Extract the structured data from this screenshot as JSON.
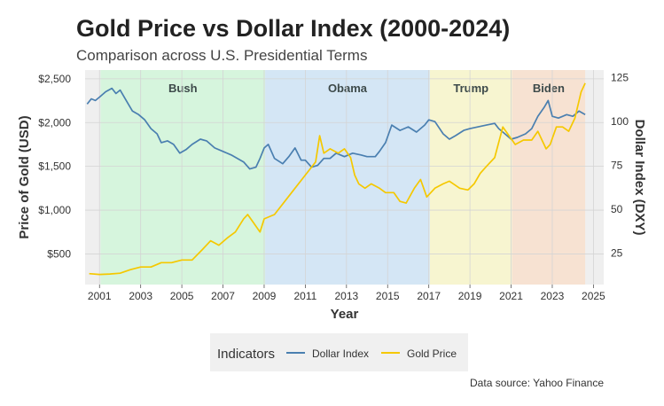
{
  "chart_data": {
    "type": "line",
    "title": "Gold Price vs Dollar Index (2000-2024)",
    "subtitle": "Comparison across U.S. Presidential Terms",
    "xlabel": "Year",
    "ylabel_left": "Price of Gold (USD)",
    "ylabel_right": "Dollar Index (DXY)",
    "caption": "Data source: Yahoo Finance",
    "xlim": [
      2000.3,
      2025.5
    ],
    "ylim_left": [
      150,
      2600
    ],
    "ylim_right": [
      7.1,
      129.4
    ],
    "x_ticks": [
      2001,
      2003,
      2005,
      2007,
      2009,
      2011,
      2013,
      2015,
      2017,
      2019,
      2021,
      2023,
      2025
    ],
    "x_tick_labels": [
      "2001",
      "2003",
      "2005",
      "2007",
      "2009",
      "2011",
      "2013",
      "2015",
      "2017",
      "2019",
      "2021",
      "2023",
      "2025"
    ],
    "y_left_ticks": [
      500,
      1000,
      1500,
      2000,
      2500
    ],
    "y_left_tick_labels": [
      "$500",
      "$1,000",
      "$1,500",
      "$2,000",
      "$2,500"
    ],
    "y_right_ticks": [
      25,
      50,
      75,
      100,
      125
    ],
    "y_right_tick_labels": [
      "25",
      "50",
      "75",
      "100",
      "125"
    ],
    "grid": true,
    "terms": [
      {
        "name": "Bush",
        "start": 2001.05,
        "end": 2009.05,
        "color": "#d6f5dd"
      },
      {
        "name": "Obama",
        "start": 2009.05,
        "end": 2017.05,
        "color": "#d4e6f5"
      },
      {
        "name": "Trump",
        "start": 2017.05,
        "end": 2021.05,
        "color": "#f7f5d0"
      },
      {
        "name": "Biden",
        "start": 2021.05,
        "end": 2024.6,
        "color": "#f7e2d2"
      }
    ],
    "legend": {
      "title": "Indicators",
      "position": "bottom"
    },
    "series": [
      {
        "name": "Dollar Index",
        "axis": "right",
        "color": "#4a7fb0",
        "x": [
          2000.4,
          2000.6,
          2000.8,
          2001.0,
          2001.3,
          2001.6,
          2001.8,
          2002.0,
          2002.3,
          2002.6,
          2002.9,
          2003.2,
          2003.5,
          2003.8,
          2004.0,
          2004.3,
          2004.6,
          2004.9,
          2005.2,
          2005.5,
          2005.9,
          2006.2,
          2006.6,
          2007.0,
          2007.4,
          2007.7,
          2008.0,
          2008.3,
          2008.6,
          2008.8,
          2009.0,
          2009.2,
          2009.5,
          2009.9,
          2010.2,
          2010.5,
          2010.8,
          2011.0,
          2011.3,
          2011.6,
          2011.9,
          2012.2,
          2012.5,
          2012.9,
          2013.3,
          2013.7,
          2014.0,
          2014.4,
          2014.6,
          2014.9,
          2015.2,
          2015.6,
          2016.0,
          2016.4,
          2016.8,
          2017.0,
          2017.3,
          2017.7,
          2018.0,
          2018.3,
          2018.7,
          2019.0,
          2019.4,
          2019.8,
          2020.2,
          2020.4,
          2020.7,
          2021.0,
          2021.3,
          2021.7,
          2022.0,
          2022.3,
          2022.6,
          2022.8,
          2023.0,
          2023.3,
          2023.7,
          2024.0,
          2024.3,
          2024.6
        ],
        "values": [
          110,
          113,
          112,
          114,
          117,
          119,
          116,
          118,
          112,
          106,
          104,
          101,
          96,
          93,
          88,
          89,
          87,
          82,
          84,
          87,
          90,
          89,
          85,
          83,
          81,
          79,
          77,
          73,
          74,
          79,
          85,
          87,
          79,
          76,
          80,
          85,
          78,
          78,
          74,
          75,
          79,
          79,
          82,
          80,
          82,
          81,
          80,
          80,
          83,
          88,
          98,
          95,
          97,
          94,
          98,
          101,
          100,
          93,
          90,
          92,
          95,
          96,
          97,
          98,
          99,
          96,
          93,
          90,
          91,
          93,
          96,
          103,
          108,
          112,
          103,
          102,
          104,
          103,
          106,
          104
        ]
      },
      {
        "name": "Gold Price",
        "axis": "left",
        "color": "#f5c800",
        "x": [
          2000.5,
          2001.0,
          2001.5,
          2002.0,
          2002.5,
          2003.0,
          2003.5,
          2004.0,
          2004.5,
          2005.0,
          2005.5,
          2006.0,
          2006.4,
          2006.8,
          2007.2,
          2007.6,
          2008.0,
          2008.2,
          2008.5,
          2008.8,
          2009.0,
          2009.5,
          2010.0,
          2010.5,
          2011.0,
          2011.5,
          2011.7,
          2011.9,
          2012.2,
          2012.6,
          2012.9,
          2013.2,
          2013.4,
          2013.6,
          2013.9,
          2014.2,
          2014.6,
          2014.9,
          2015.3,
          2015.6,
          2015.9,
          2016.3,
          2016.6,
          2016.9,
          2017.3,
          2017.7,
          2018.0,
          2018.5,
          2018.9,
          2019.2,
          2019.5,
          2019.8,
          2020.2,
          2020.6,
          2020.9,
          2021.2,
          2021.6,
          2022.0,
          2022.3,
          2022.7,
          2022.9,
          2023.2,
          2023.5,
          2023.8,
          2024.1,
          2024.4,
          2024.6
        ],
        "values": [
          275,
          265,
          270,
          280,
          320,
          350,
          350,
          400,
          400,
          430,
          430,
          550,
          650,
          600,
          680,
          750,
          900,
          950,
          850,
          750,
          900,
          950,
          1100,
          1250,
          1400,
          1550,
          1850,
          1650,
          1700,
          1650,
          1700,
          1600,
          1400,
          1300,
          1250,
          1300,
          1250,
          1200,
          1200,
          1100,
          1080,
          1250,
          1350,
          1150,
          1250,
          1300,
          1330,
          1250,
          1230,
          1300,
          1420,
          1500,
          1600,
          1950,
          1850,
          1750,
          1800,
          1800,
          1900,
          1700,
          1750,
          1950,
          1950,
          1900,
          2050,
          2350,
          2450
        ]
      }
    ]
  }
}
